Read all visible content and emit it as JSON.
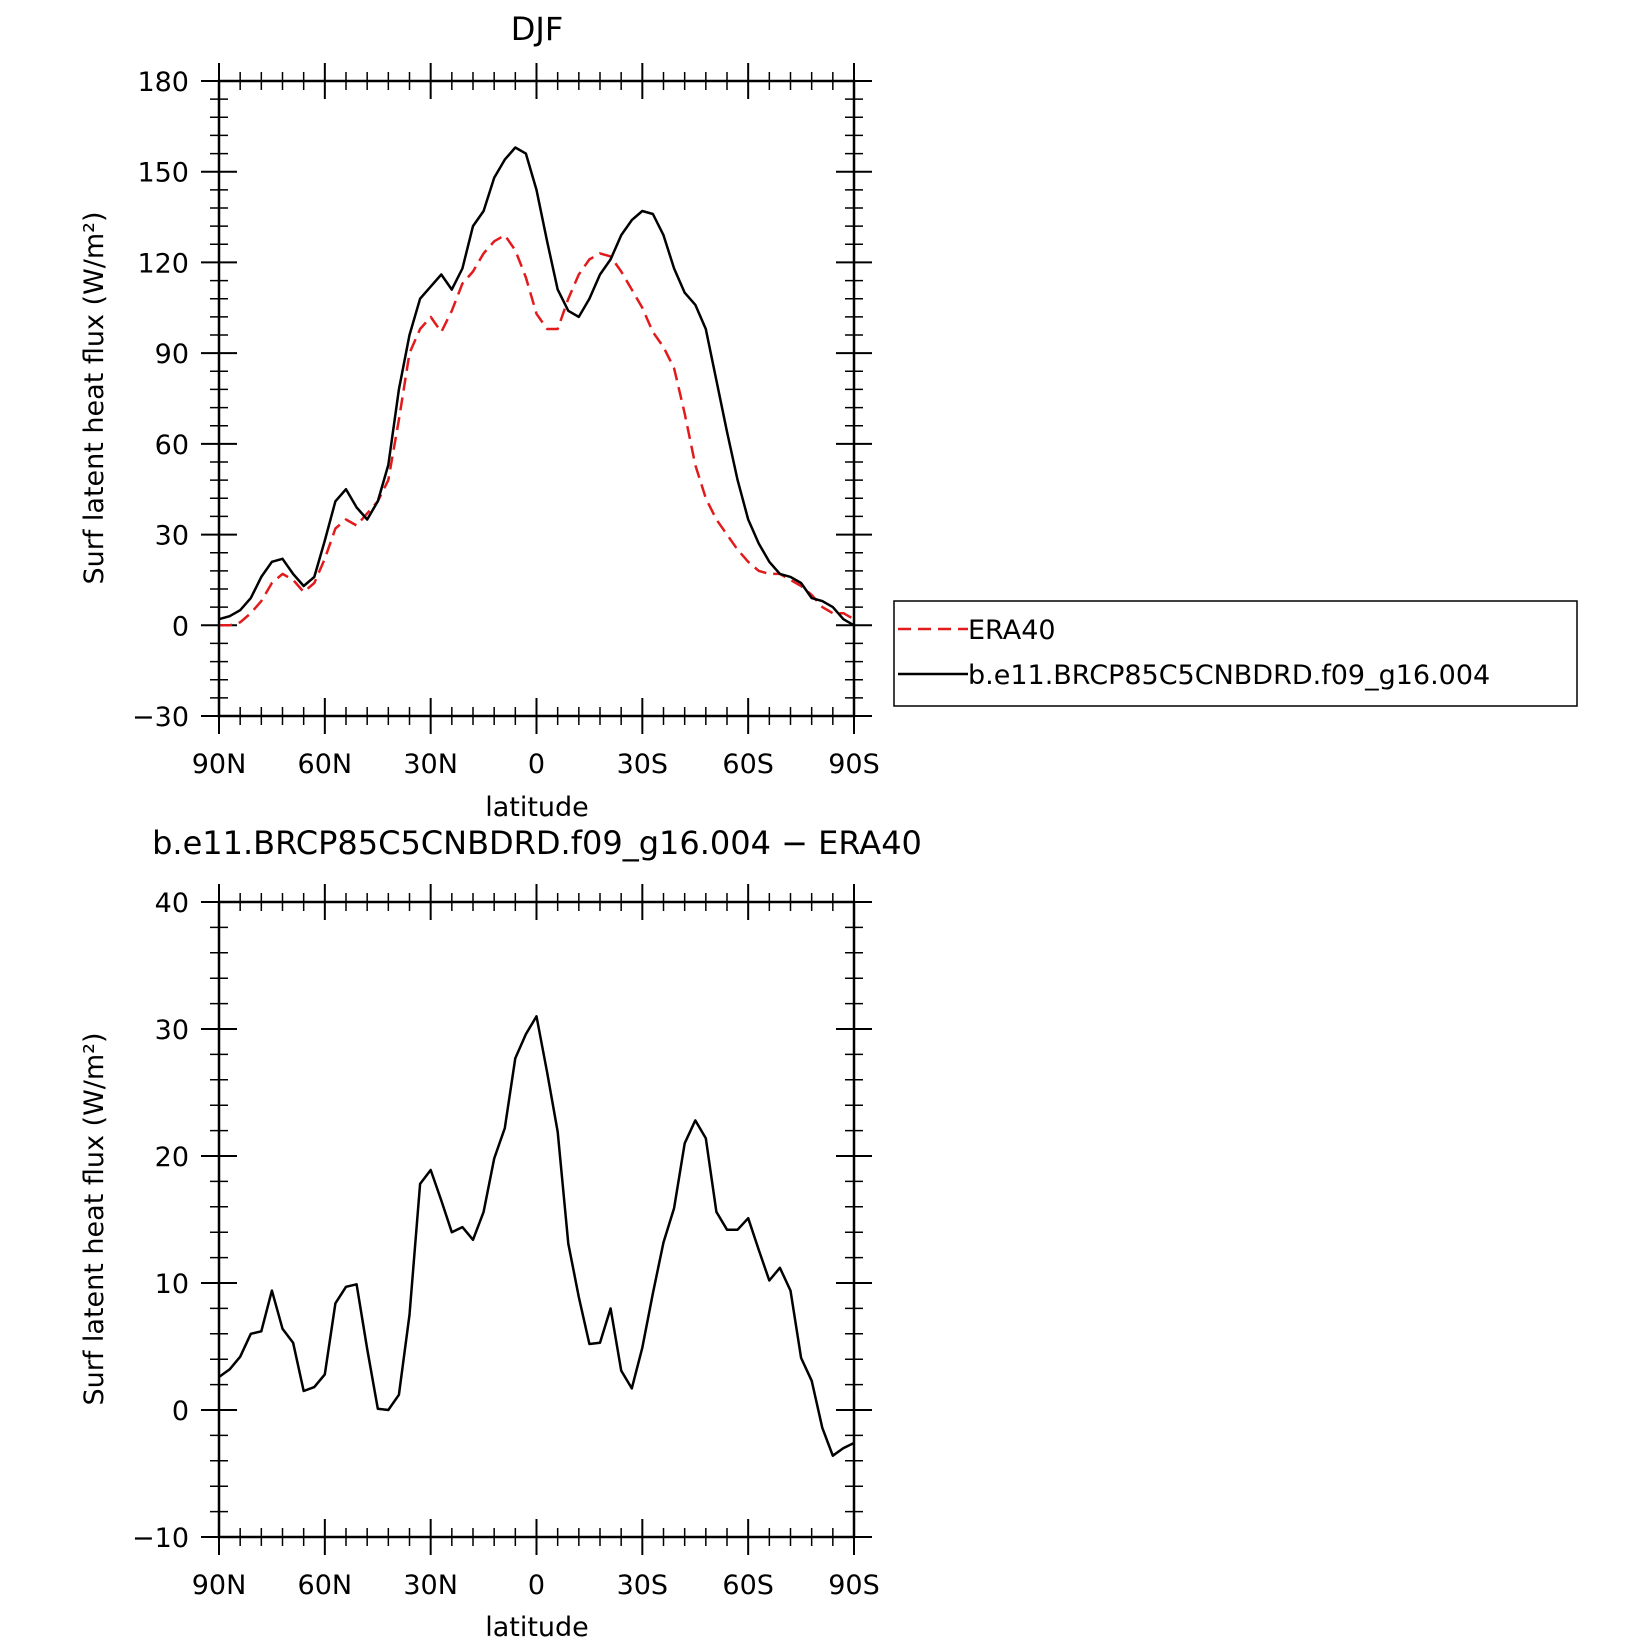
{
  "chart_data": [
    {
      "type": "line",
      "title": "DJF",
      "xlabel": "latitude",
      "ylabel": "Surf latent heat flux (W/m²)",
      "xlim": [
        90,
        -90
      ],
      "ylim": [
        -30,
        180
      ],
      "xticks": [
        90,
        60,
        30,
        0,
        -30,
        -60,
        -90
      ],
      "xtick_labels": [
        "90N",
        "60N",
        "30N",
        "0",
        "30S",
        "60S",
        "90S"
      ],
      "yticks": [
        -30,
        0,
        30,
        60,
        90,
        120,
        150,
        180
      ],
      "ytick_labels": [
        "−30",
        "0",
        "30",
        "60",
        "90",
        "120",
        "150",
        "180"
      ],
      "legend_placement": "right",
      "series": [
        {
          "name": "ERA40",
          "color": "#e31a1c",
          "dash": "dashed",
          "x": [
            90,
            87,
            84,
            81,
            78,
            75,
            72,
            69,
            66,
            63,
            60,
            57,
            54,
            51,
            48,
            45,
            42,
            39,
            36,
            33,
            30,
            27,
            24,
            21,
            18,
            15,
            12,
            9,
            6,
            3,
            0,
            -3,
            -6,
            -9,
            -12,
            -15,
            -18,
            -21,
            -24,
            -27,
            -30,
            -33,
            -36,
            -39,
            -42,
            -45,
            -48,
            -51,
            -54,
            -57,
            -60,
            -63,
            -66,
            -69,
            -72,
            -75,
            -78,
            -81,
            -84,
            -87,
            -90
          ],
          "values": [
            0,
            0,
            1,
            4,
            8,
            14,
            17,
            15,
            11,
            14,
            22,
            32,
            35,
            33,
            37,
            41,
            48,
            68,
            90,
            98,
            102,
            97,
            104,
            113,
            117,
            123,
            127,
            129,
            124,
            115,
            103,
            98,
            98,
            108,
            116,
            121,
            123,
            122,
            117,
            111,
            105,
            97,
            92,
            85,
            70,
            53,
            42,
            35,
            30,
            25,
            21,
            18,
            17,
            17,
            15,
            13,
            10,
            6,
            4,
            4,
            2
          ]
        },
        {
          "name": "b.e11.BRCP85C5CNBDRD.f09_g16.004",
          "color": "#000000",
          "dash": "solid",
          "x": [
            90,
            87,
            84,
            81,
            78,
            75,
            72,
            69,
            66,
            63,
            60,
            57,
            54,
            51,
            48,
            45,
            42,
            39,
            36,
            33,
            30,
            27,
            24,
            21,
            18,
            15,
            12,
            9,
            6,
            3,
            0,
            -3,
            -6,
            -9,
            -12,
            -15,
            -18,
            -21,
            -24,
            -27,
            -30,
            -33,
            -36,
            -39,
            -42,
            -45,
            -48,
            -51,
            -54,
            -57,
            -60,
            -63,
            -66,
            -69,
            -72,
            -75,
            -78,
            -81,
            -84,
            -87,
            -90
          ],
          "values": [
            2,
            3,
            5,
            9,
            16,
            21,
            22,
            17,
            13,
            16,
            28,
            41,
            45,
            39,
            35,
            41,
            53,
            78,
            96,
            108,
            112,
            116,
            111,
            118,
            132,
            137,
            148,
            154,
            158,
            156,
            144,
            127,
            111,
            104,
            102,
            108,
            116,
            121,
            129,
            134,
            137,
            136,
            129,
            118,
            110,
            106,
            98,
            81,
            64,
            48,
            35,
            27,
            21,
            17,
            16,
            14,
            9,
            8,
            6,
            2,
            0
          ]
        }
      ]
    },
    {
      "type": "line",
      "title": "b.e11.BRCP85C5CNBDRD.f09_g16.004 − ERA40",
      "xlabel": "latitude",
      "ylabel": "Surf latent heat flux (W/m²)",
      "xlim": [
        90,
        -90
      ],
      "ylim": [
        -10,
        40
      ],
      "xticks": [
        90,
        60,
        30,
        0,
        -30,
        -60,
        -90
      ],
      "xtick_labels": [
        "90N",
        "60N",
        "30N",
        "0",
        "30S",
        "60S",
        "90S"
      ],
      "yticks": [
        -10,
        0,
        10,
        20,
        30,
        40
      ],
      "ytick_labels": [
        "−10",
        "0",
        "10",
        "20",
        "30",
        "40"
      ],
      "series": [
        {
          "color": "#000000",
          "dash": "solid",
          "x": [
            90,
            87,
            84,
            81,
            78,
            75,
            72,
            69,
            66,
            63,
            60,
            57,
            54,
            51,
            48,
            45,
            42,
            39,
            36,
            33,
            30,
            27,
            24,
            21,
            18,
            15,
            12,
            9,
            6,
            3,
            0,
            -3,
            -6,
            -9,
            -12,
            -15,
            -18,
            -21,
            -24,
            -27,
            -30,
            -33,
            -36,
            -39,
            -42,
            -45,
            -48,
            -51,
            -54,
            -57,
            -60,
            -63,
            -66,
            -69,
            -72,
            -75,
            -78,
            -81,
            -84,
            -87,
            -90
          ],
          "values": [
            2.6,
            3.2,
            4.2,
            6.0,
            6.2,
            9.4,
            6.4,
            5.3,
            1.5,
            1.8,
            2.8,
            8.4,
            9.7,
            9.9,
            4.8,
            0.1,
            0.0,
            1.2,
            7.5,
            17.8,
            18.9,
            16.5,
            14.0,
            14.4,
            13.4,
            15.6,
            19.8,
            22.2,
            27.7,
            29.6,
            31.0,
            26.6,
            21.9,
            13.1,
            8.9,
            5.2,
            5.3,
            8.0,
            3.1,
            1.7,
            4.9,
            9.2,
            13.2,
            15.9,
            21.0,
            22.8,
            21.4,
            15.6,
            14.2,
            14.2,
            15.1,
            12.6,
            10.2,
            11.2,
            9.4,
            4.1,
            2.3,
            -1.4,
            -3.6,
            -3.0,
            -2.6
          ]
        }
      ]
    }
  ]
}
